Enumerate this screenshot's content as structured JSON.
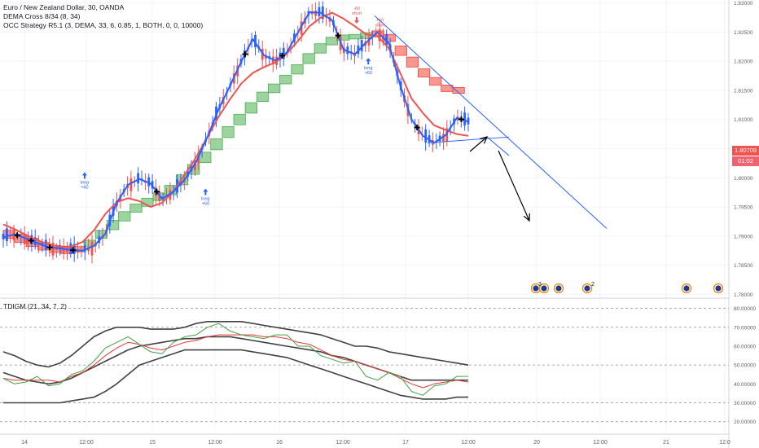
{
  "header": {
    "title": "Euro / New Zealand Dollar, 30, OANDA",
    "indicator_1": "DEMA Cross 8/34 (8, 34)",
    "indicator_2": "OCC Strategy R5.1 (3, DEMA, 33, 6, 0.85, 1, BOTH, 0, 0, 10000)"
  },
  "price_badge": {
    "last": "1.80709",
    "timer": "01:02"
  },
  "colors": {
    "candle_up": "#2962ff",
    "candle_down": "#ef5350",
    "dema_fast": "#2962ff",
    "dema_slow": "#ef5350",
    "ribbon_green": "#4caf50",
    "ribbon_red": "#f44336",
    "trendline": "#2962ff",
    "annotation_arrow": "#000000",
    "tdi_price_line": "#43a047",
    "tdi_signal_line": "#e53935",
    "tdi_bands": "#424242"
  },
  "chart_data": [
    {
      "type": "line",
      "title": "Euro / New Zealand Dollar, 30, OANDA",
      "x_tick_labels": [
        "14",
        "12:00",
        "15",
        "12:00",
        "16",
        "12:00",
        "17",
        "12:00",
        "20",
        "12:00",
        "21",
        "12:0"
      ],
      "y_tick_labels": [
        "1.83000",
        "1.82500",
        "1.82000",
        "1.81500",
        "1.81000",
        "1.80500",
        "1.80000",
        "1.79500",
        "1.79000",
        "1.78500",
        "1.78000"
      ],
      "ylim": [
        1.7795,
        1.8305
      ],
      "grid": true,
      "last_price": 1.80709,
      "series": [
        {
          "name": "DEMA Cross 8/34",
          "values": [
            1.7898,
            1.7903,
            1.7896,
            1.7888,
            1.7881,
            1.7879,
            1.7876,
            1.7875,
            1.7883,
            1.7904,
            1.7957,
            1.7988,
            1.7998,
            1.799,
            1.7964,
            1.7976,
            1.7997,
            1.8027,
            1.807,
            1.8118,
            1.8158,
            1.82,
            1.8238,
            1.821,
            1.8201,
            1.8215,
            1.825,
            1.8284,
            1.8283,
            1.827,
            1.822,
            1.8212,
            1.8232,
            1.825,
            1.8231,
            1.8159,
            1.81,
            1.8072,
            1.806,
            1.8073,
            1.8103,
            1.8096
          ]
        },
        {
          "name": "DEMA Cross 8/34 slow",
          "values": [
            1.792,
            1.7912,
            1.7902,
            1.7893,
            1.7886,
            1.7882,
            1.7882,
            1.789,
            1.791,
            1.7938,
            1.7958,
            1.7965,
            1.796,
            1.795,
            1.7957,
            1.7977,
            1.8005,
            1.8035,
            1.807,
            1.8105,
            1.8135,
            1.8162,
            1.818,
            1.819,
            1.8198,
            1.8213,
            1.8235,
            1.826,
            1.8275,
            1.8283,
            1.8273,
            1.826,
            1.8246,
            1.8243,
            1.8222,
            1.818,
            1.8136,
            1.8111,
            1.809,
            1.8082,
            1.8075,
            1.8072
          ]
        },
        {
          "name": "OCC Strategy R5.1 open",
          "values": [
            1.7906,
            1.7899,
            1.7892,
            1.7885,
            1.788,
            1.7877,
            1.7878,
            1.7887,
            1.79,
            1.7915,
            1.793,
            1.7945,
            1.7955,
            1.7965,
            1.7975,
            1.7992,
            1.801,
            1.803,
            1.8052,
            1.8073,
            1.8095,
            1.8115,
            1.8135,
            1.815,
            1.8165,
            1.8182,
            1.82,
            1.8218,
            1.8232,
            1.824,
            1.8242,
            1.8243,
            1.8248,
            1.8242,
            1.8222,
            1.8203,
            1.8183,
            1.8168,
            1.8155,
            1.8151
          ]
        },
        {
          "name": "OCC Strategy R5.1 close",
          "values": [
            1.79,
            1.7893,
            1.7886,
            1.788,
            1.7876,
            1.7874,
            1.7877,
            1.7889,
            1.7906,
            1.7923,
            1.7938,
            1.7951,
            1.7961,
            1.797,
            1.7983,
            1.8001,
            1.8019,
            1.804,
            1.8063,
            1.8084,
            1.8105,
            1.8125,
            1.8143,
            1.8157,
            1.8172,
            1.819,
            1.8209,
            1.8226,
            1.8237,
            1.8241,
            1.8242,
            1.8245,
            1.8246,
            1.8238,
            1.8214,
            1.8194,
            1.8177,
            1.8163,
            1.8152,
            1.8149
          ]
        }
      ],
      "signals": [
        {
          "label": "long",
          "text": "+60",
          "price": 1.8004
        },
        {
          "label": "long",
          "text": "+60",
          "price": 1.7976
        },
        {
          "label": "short",
          "text": "-60",
          "price": 1.827
        },
        {
          "label": "short",
          "text": "+60",
          "price": 1.825
        },
        {
          "label": "long",
          "text": "+60",
          "price": 1.82
        }
      ],
      "trendlines": [
        {
          "from": [
            1.8278
          ],
          "to": [
            1.7913
          ]
        },
        {
          "from": [
            1.806
          ],
          "to": [
            1.807
          ]
        }
      ],
      "event_labels": [
        "3",
        "2"
      ]
    },
    {
      "type": "line",
      "title": "TDIGM (21, 34, 7, 2)",
      "y_tick_labels": [
        "80.00000",
        "70.00000",
        "60.00000",
        "50.00000",
        "40.00000",
        "30.00000",
        "20.00000"
      ],
      "ylim": [
        16,
        85
      ],
      "grid": true,
      "levels": [
        80,
        70,
        50,
        30,
        20
      ],
      "series": [
        {
          "name": "price",
          "values": [
            43,
            40,
            41,
            44,
            39,
            40,
            45,
            47,
            52,
            59,
            62,
            65,
            61,
            57,
            56,
            62,
            65,
            66,
            70,
            72,
            68,
            66,
            65,
            64,
            66,
            66,
            60,
            60,
            55,
            53,
            51,
            52,
            44,
            42,
            46,
            44,
            36,
            34,
            39,
            40,
            44,
            44
          ]
        },
        {
          "name": "signal",
          "values": [
            43,
            42,
            42,
            42,
            42,
            41,
            44,
            46,
            50,
            55,
            59,
            62,
            61,
            59,
            58,
            60,
            62,
            63,
            65,
            66,
            66,
            66,
            66,
            65,
            65,
            64,
            62,
            61,
            58,
            55,
            53,
            52,
            50,
            48,
            46,
            43,
            40,
            38,
            40,
            41,
            42,
            41
          ]
        },
        {
          "name": "upper band",
          "values": [
            57,
            55,
            52,
            50,
            49,
            51,
            55,
            60,
            65,
            68,
            70,
            70,
            70,
            69,
            69,
            69,
            70,
            72,
            73,
            73,
            73,
            73,
            72,
            71,
            70,
            69,
            68,
            67,
            66,
            64,
            62,
            60,
            60,
            59,
            57,
            56,
            55,
            54,
            53,
            52,
            51,
            50
          ]
        },
        {
          "name": "mid band",
          "values": [
            46,
            44,
            42,
            41,
            40,
            41,
            43,
            46,
            49,
            52,
            55,
            58,
            60,
            61,
            62,
            63,
            64,
            64,
            65,
            65,
            65,
            64,
            63,
            62,
            61,
            60,
            59,
            58,
            57,
            55,
            54,
            52,
            50,
            48,
            46,
            44,
            42,
            42,
            42,
            42,
            42,
            42
          ]
        },
        {
          "name": "lower band",
          "values": [
            30,
            30,
            30,
            30,
            30,
            30,
            31,
            32,
            33,
            36,
            40,
            45,
            50,
            52,
            54,
            56,
            58,
            58,
            58,
            58,
            58,
            58,
            57,
            56,
            55,
            54,
            52,
            50,
            48,
            46,
            44,
            42,
            40,
            38,
            36,
            34,
            33,
            32,
            32,
            32,
            33,
            33
          ]
        }
      ]
    }
  ]
}
